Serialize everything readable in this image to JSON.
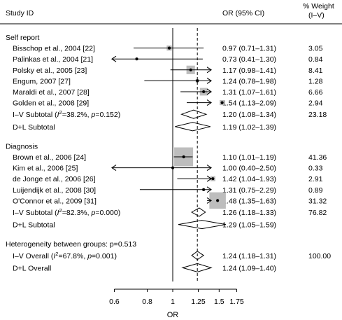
{
  "chart_data": {
    "type": "forest",
    "headers": {
      "study": "Study ID",
      "or": "OR (95% CI)",
      "weight_line1": "% Weight",
      "weight_line2": "(I–V)"
    },
    "xlabel": "OR",
    "x_ticks": [
      "0.6",
      "0.8",
      "1",
      "1.25",
      "1.5",
      "1.75"
    ],
    "x_tick_values": [
      0.6,
      0.8,
      1.0,
      1.25,
      1.5,
      1.75
    ],
    "axis_range": [
      0.55,
      2.8
    ],
    "null_line": 1.0,
    "overall_dashed_line": 1.24,
    "groups": [
      {
        "name": "Self report",
        "studies": [
          {
            "label": "Bisschop et al., 2004 [22]",
            "or": 0.97,
            "lo": 0.71,
            "hi": 1.31,
            "ci_text": "0.97 (0.71–1.31)",
            "weight": "3.05",
            "weight_value": 3.05
          },
          {
            "label": "Palinkas et al., 2004 [21]",
            "or": 0.73,
            "lo": 0.41,
            "hi": 1.3,
            "ci_text": "0.73 (0.41–1.30)",
            "weight": "0.84",
            "weight_value": 0.84
          },
          {
            "label": "Polsky et al., 2005 [23]",
            "or": 1.17,
            "lo": 0.98,
            "hi": 1.41,
            "ci_text": "1.17 (0.98–1.41)",
            "weight": "8.41",
            "weight_value": 8.41
          },
          {
            "label": "Engum, 2007 [27]",
            "or": 1.24,
            "lo": 0.78,
            "hi": 1.98,
            "ci_text": "1.24 (0.78–1.98)",
            "weight": "1.28",
            "weight_value": 1.28
          },
          {
            "label": "Maraldi et al., 2007 [28]",
            "or": 1.31,
            "lo": 1.07,
            "hi": 1.61,
            "ci_text": "1.31 (1.07–1.61)",
            "weight": "6.66",
            "weight_value": 6.66
          },
          {
            "label": "Golden et al., 2008 [29]",
            "or": 1.54,
            "lo": 1.13,
            "hi": 2.09,
            "ci_text": "1.54 (1.13–2.09)",
            "weight": "2.94",
            "weight_value": 2.94
          }
        ],
        "subtotals": [
          {
            "label_prefix": "I–V Subtotal  (",
            "i2_text": "=38.2%, ",
            "p_text": "=0.152)",
            "or": 1.2,
            "lo": 1.08,
            "hi": 1.34,
            "ci_text": "1.20 (1.08–1.34)",
            "weight": "23.18"
          },
          {
            "label_prefix": "D+L Subtotal",
            "or": 1.19,
            "lo": 1.02,
            "hi": 1.39,
            "ci_text": "1.19 (1.02–1.39)",
            "weight": ""
          }
        ]
      },
      {
        "name": "Diagnosis",
        "studies": [
          {
            "label": "Brown et al., 2006 [24]",
            "or": 1.1,
            "lo": 1.01,
            "hi": 1.19,
            "ci_text": "1.10 (1.01–1.19)",
            "weight": "41.36",
            "weight_value": 41.36
          },
          {
            "label": "Kim et al., 2006 [25]",
            "or": 1.0,
            "lo": 0.4,
            "hi": 2.5,
            "ci_text": "1.00 (0.40–2.50)",
            "weight": "0.33",
            "weight_value": 0.33
          },
          {
            "label": "de Jonge et al., 2006 [26]",
            "or": 1.42,
            "lo": 1.04,
            "hi": 1.93,
            "ci_text": "1.42 (1.04–1.93)",
            "weight": "2.91",
            "weight_value": 2.91
          },
          {
            "label": "Luijendijk et al., 2008 [30]",
            "or": 1.31,
            "lo": 0.75,
            "hi": 2.29,
            "ci_text": "1.31 (0.75–2.29)",
            "weight": "0.89",
            "weight_value": 0.89
          },
          {
            "label": "O'Connor et al., 2009 [31]",
            "or": 1.48,
            "lo": 1.35,
            "hi": 1.63,
            "ci_text": "1.48 (1.35–1.63)",
            "weight": "31.32",
            "weight_value": 31.32
          }
        ],
        "subtotals": [
          {
            "label_prefix": "I–V Subtotal  (",
            "i2_text": "=82.3%, ",
            "p_text": "=0.000)",
            "or": 1.26,
            "lo": 1.18,
            "hi": 1.33,
            "ci_text": "1.26 (1.18–1.33)",
            "weight": "76.82"
          },
          {
            "label_prefix": "D+L Subtotal",
            "or": 1.29,
            "lo": 1.05,
            "hi": 1.59,
            "ci_text": "1.29 (1.05–1.59)",
            "weight": ""
          }
        ]
      }
    ],
    "heterogeneity_text": "Heterogeneity between groups: p=0.513",
    "overall": [
      {
        "label_prefix": "I–V Overall  (",
        "i2_text": "=67.8%, ",
        "p_text": "=0.001)",
        "or": 1.24,
        "lo": 1.18,
        "hi": 1.31,
        "ci_text": "1.24 (1.18–1.31)",
        "weight": "100.00"
      },
      {
        "label_prefix": "D+L Overall",
        "or": 1.24,
        "lo": 1.09,
        "hi": 1.4,
        "ci_text": "1.24 (1.09–1.40)",
        "weight": ""
      }
    ],
    "i2_symbol": "I",
    "i2_sup": "2",
    "p_symbol": "p"
  }
}
